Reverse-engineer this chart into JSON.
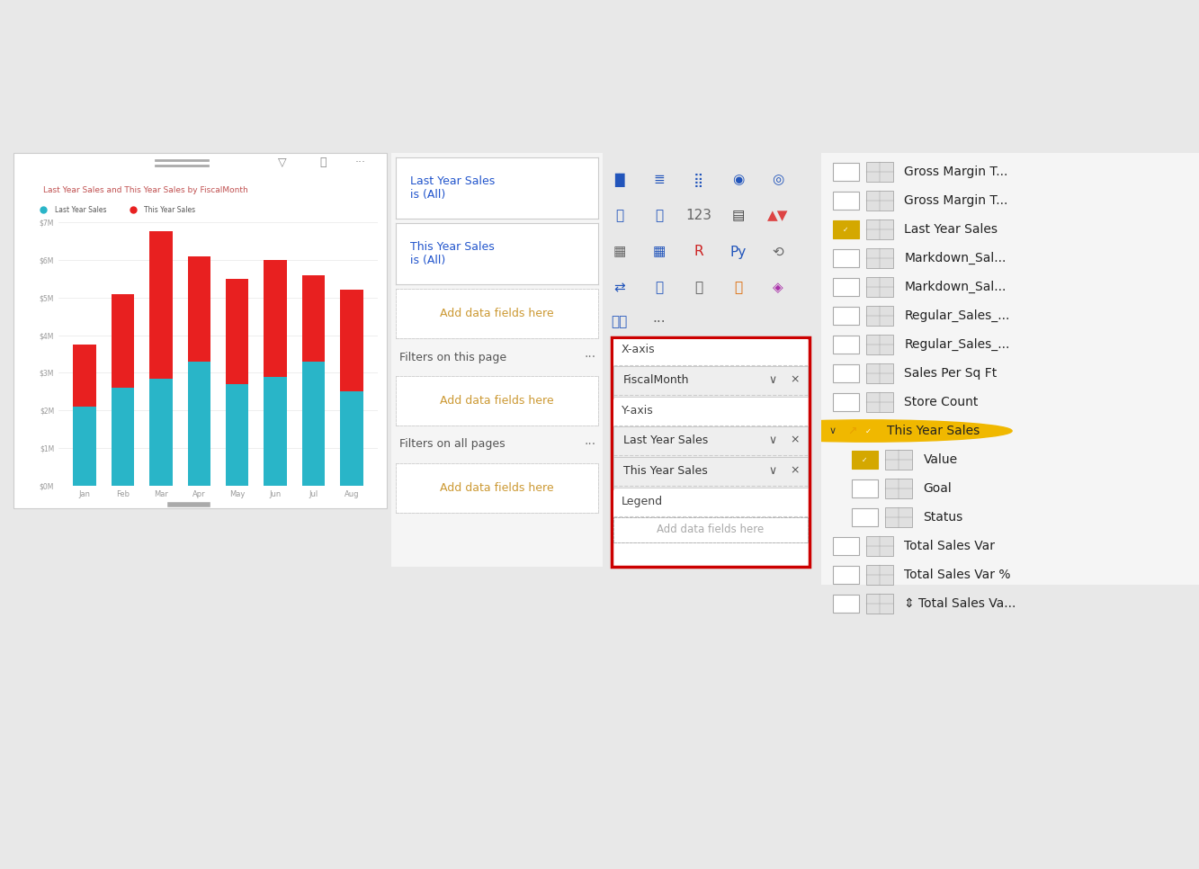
{
  "bg_color": "#e8e8e8",
  "chart": {
    "title": "Last Year Sales and This Year Sales by FiscalMonth",
    "title_color": "#c05050",
    "title_fontsize": 6.5,
    "legend_labels": [
      "Last Year Sales",
      "This Year Sales"
    ],
    "legend_colors": [
      "#29b5c8",
      "#e82020"
    ],
    "categories": [
      "Jan",
      "Feb",
      "Mar",
      "Apr",
      "May",
      "Jun",
      "Jul",
      "Aug"
    ],
    "last_year": [
      2.1,
      2.6,
      2.85,
      3.3,
      2.7,
      2.9,
      3.3,
      2.5
    ],
    "this_year": [
      1.65,
      2.5,
      3.9,
      2.8,
      2.8,
      3.1,
      2.3,
      2.7
    ],
    "ylim": [
      0,
      7
    ],
    "ytick_labels": [
      "$0M",
      "$1M",
      "$2M",
      "$3M",
      "$4M",
      "$5M",
      "$6M",
      "$7M"
    ],
    "bar_color_bottom": "#29b5c8",
    "bar_color_top": "#e82020",
    "grid_color": "#e8e8e8",
    "axis_color": "#999999",
    "bar_width": 0.6
  },
  "filter_items": [
    {
      "text": "Last Year Sales\nis (All)",
      "color": "#2255cc",
      "type": "box"
    },
    {
      "text": "This Year Sales\nis (All)",
      "color": "#2255cc",
      "type": "box"
    },
    {
      "text": "Add data fields here",
      "color": "#cc9933",
      "type": "dashed_center"
    },
    {
      "text": "Filters on this page",
      "type": "section",
      "dots": true
    },
    {
      "text": "Add data fields here",
      "color": "#cc9933",
      "type": "dashed_center"
    },
    {
      "text": "Filters on all pages",
      "type": "section",
      "dots": true
    },
    {
      "text": "Add data fields here",
      "color": "#cc9933",
      "type": "dashed_center"
    }
  ],
  "field_well_sections": [
    {
      "name": "X-axis",
      "pills": [
        "FiscalMonth"
      ]
    },
    {
      "name": "Y-axis",
      "pills": [
        "Last Year Sales",
        "This Year Sales"
      ]
    },
    {
      "name": "Legend",
      "pills": []
    }
  ],
  "fields_list": [
    {
      "type": "item",
      "checked": false,
      "gold": false,
      "highlight": false,
      "indent": false,
      "label": "Gross Margin T..."
    },
    {
      "type": "item",
      "checked": false,
      "gold": false,
      "highlight": false,
      "indent": false,
      "label": "Gross Margin T..."
    },
    {
      "type": "item",
      "checked": true,
      "gold": true,
      "highlight": false,
      "indent": false,
      "label": "Last Year Sales"
    },
    {
      "type": "item",
      "checked": false,
      "gold": false,
      "highlight": false,
      "indent": false,
      "label": "Markdown_Sal..."
    },
    {
      "type": "item",
      "checked": false,
      "gold": false,
      "highlight": false,
      "indent": false,
      "label": "Markdown_Sal..."
    },
    {
      "type": "item",
      "checked": false,
      "gold": false,
      "highlight": false,
      "indent": false,
      "label": "Regular_Sales_..."
    },
    {
      "type": "item",
      "checked": false,
      "gold": false,
      "highlight": true,
      "indent": false,
      "label": "Regular_Sales_..."
    },
    {
      "type": "item",
      "checked": false,
      "gold": false,
      "highlight": false,
      "indent": false,
      "label": "Sales Per Sq Ft"
    },
    {
      "type": "item",
      "checked": false,
      "gold": false,
      "highlight": false,
      "indent": false,
      "label": "Store Count"
    },
    {
      "type": "section",
      "gold": true,
      "label": "This Year Sales"
    },
    {
      "type": "item",
      "checked": true,
      "gold": true,
      "highlight": false,
      "indent": true,
      "label": "Value"
    },
    {
      "type": "item",
      "checked": false,
      "gold": false,
      "highlight": false,
      "indent": true,
      "label": "Goal"
    },
    {
      "type": "item",
      "checked": false,
      "gold": false,
      "highlight": false,
      "indent": true,
      "label": "Status"
    },
    {
      "type": "item",
      "checked": false,
      "gold": false,
      "highlight": false,
      "indent": false,
      "label": "Total Sales Var"
    },
    {
      "type": "item",
      "checked": false,
      "gold": false,
      "highlight": false,
      "indent": false,
      "label": "Total Sales Var %"
    },
    {
      "type": "item",
      "checked": false,
      "gold": false,
      "highlight": false,
      "indent": false,
      "label": "⇕ Total Sales Va..."
    }
  ]
}
